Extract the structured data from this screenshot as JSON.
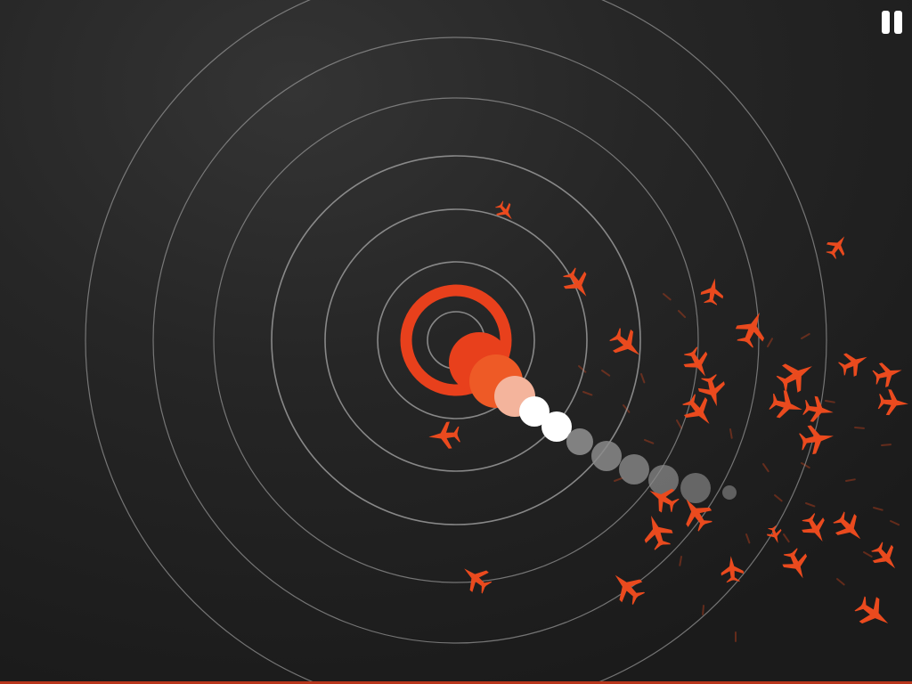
{
  "game": {
    "title": "",
    "colors": {
      "background": "#1e1e1e",
      "radar_ring": "#9a9a9a",
      "accent": "#e8401c",
      "plane": "#ea4a1e",
      "trail_head": "#e8401c",
      "trail_light": "#f4b49c",
      "trail_white": "#ffffff",
      "trail_gray": "#8c8c8c",
      "bottom_strip": "#b8361c"
    },
    "radar": {
      "ring_count": 7,
      "target_ring_present": true
    },
    "trail": {
      "segment_count": 10,
      "tones": [
        "head",
        "head",
        "light",
        "white",
        "white",
        "gray",
        "gray",
        "gray",
        "gray",
        "gray"
      ]
    },
    "planes": {
      "visible_count": 46
    },
    "controls": {
      "pause_icon": "pause-icon"
    }
  }
}
